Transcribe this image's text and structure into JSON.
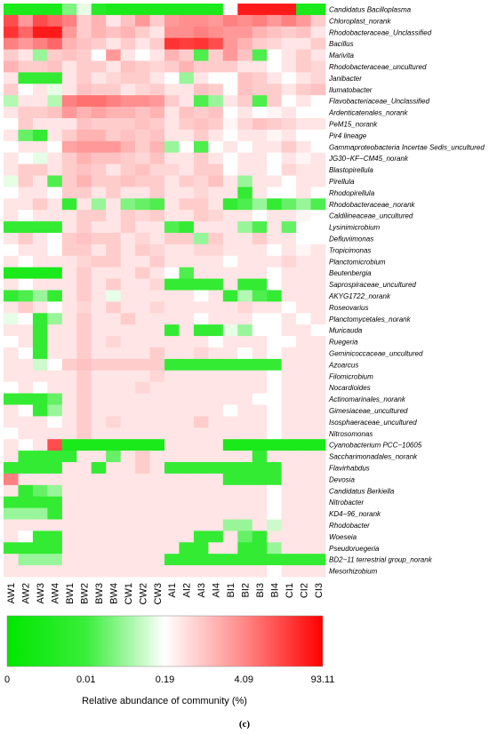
{
  "chart_data": {
    "type": "heatmap",
    "rows": [
      "Candidatus Bacilloplasma",
      "Chloroplast_norank",
      "Rhodobacteraceae_Unclassified",
      "Bacillus",
      "Marivita",
      "Rhodobacteraceae_uncultured",
      "Janibacter",
      "Ilumatobacter",
      "Flavobacteriaceae_Unclassified",
      "Ardenticatenales_norank",
      "PeM15_norank",
      "Pir4 lineage",
      "Gammaproteobacteria Incertae Sedis_uncultured",
      "JG30−KF−CM45_norank",
      "Blastopirellula",
      "Pirellula",
      "Rhodopirellula",
      "Rhodobacteraceae_norank",
      "Caldilineaceae_uncultured",
      "Lysinimicrobium",
      "Defluviimonas",
      "Tropicimonas",
      "Planctomicrobium",
      "Beutenbergia",
      "Saprospiraceae_uncultured",
      "AKYG1722_norank",
      "Roseovarius",
      "Planctomycetales_norank",
      "Muricauda",
      "Ruegeria",
      "Geminicoccaceae_uncultured",
      "Azoarcus",
      "Filomicrobium",
      "Nocardioides",
      "Actinomarinales_norank",
      "Gimesiaceae_uncultured",
      "Isosphaeraceae_uncultured",
      "Nitrosomonas",
      "Cyanobacterium PCC−10605",
      "Saccharimonadales_norank",
      "Flavirhabdus",
      "Devosia",
      "Candidatus Berkiella",
      "Nitrobacter",
      "KD4−96_norank",
      "Rhodobacter",
      "Woeseia",
      "Pseudoruegeria",
      "BD2−11 terrestrial group_norank",
      "Mesorhizobium"
    ],
    "columns": [
      "AW1",
      "AW2",
      "AW3",
      "AW4",
      "BW1",
      "BW2",
      "BW3",
      "BW4",
      "CW1",
      "CW2",
      "CW3",
      "AI1",
      "AI2",
      "AI3",
      "AI4",
      "BI1",
      "BI2",
      "BI3",
      "BI4",
      "CI1",
      "CI2",
      "CI3"
    ],
    "values": [
      [
        0.05,
        0.05,
        0.05,
        0.05,
        0.25,
        0.45,
        0.08,
        0.05,
        0.05,
        0.05,
        0.05,
        0.05,
        0.05,
        0.05,
        0.05,
        0.5,
        0.95,
        0.95,
        0.95,
        0.95,
        0.05,
        0.05
      ],
      [
        0.85,
        0.7,
        0.85,
        0.8,
        0.75,
        0.6,
        0.65,
        0.55,
        0.62,
        0.7,
        0.6,
        0.7,
        0.72,
        0.72,
        0.7,
        0.75,
        0.72,
        0.75,
        0.7,
        0.75,
        0.7,
        0.6
      ],
      [
        0.9,
        0.8,
        0.95,
        0.95,
        0.7,
        0.6,
        0.65,
        0.62,
        0.65,
        0.6,
        0.55,
        0.72,
        0.72,
        0.75,
        0.72,
        0.7,
        0.7,
        0.65,
        0.62,
        0.6,
        0.62,
        0.55
      ],
      [
        0.75,
        0.7,
        0.75,
        0.8,
        0.65,
        0.62,
        0.6,
        0.55,
        0.6,
        0.55,
        0.6,
        0.9,
        0.88,
        0.9,
        0.85,
        0.7,
        0.65,
        0.6,
        0.58,
        0.55,
        0.55,
        0.6
      ],
      [
        0.6,
        0.55,
        0.3,
        0.6,
        0.62,
        0.6,
        0.5,
        0.7,
        0.55,
        0.5,
        0.55,
        0.65,
        0.6,
        0.15,
        0.6,
        0.7,
        0.62,
        0.15,
        0.5,
        0.55,
        0.6,
        0.55
      ],
      [
        0.65,
        0.6,
        0.6,
        0.62,
        0.55,
        0.6,
        0.6,
        0.55,
        0.62,
        0.6,
        0.58,
        0.6,
        0.65,
        0.6,
        0.6,
        0.6,
        0.55,
        0.55,
        0.5,
        0.55,
        0.6,
        0.58
      ],
      [
        0.55,
        0.1,
        0.1,
        0.1,
        0.55,
        0.6,
        0.55,
        0.58,
        0.6,
        0.6,
        0.55,
        0.5,
        0.3,
        0.55,
        0.5,
        0.5,
        0.62,
        0.6,
        0.55,
        0.5,
        0.55,
        0.58
      ],
      [
        0.6,
        0.5,
        0.55,
        0.45,
        0.55,
        0.62,
        0.6,
        0.6,
        0.55,
        0.58,
        0.6,
        0.55,
        0.55,
        0.62,
        0.6,
        0.5,
        0.62,
        0.6,
        0.6,
        0.55,
        0.6,
        0.62
      ],
      [
        0.35,
        0.55,
        0.55,
        0.35,
        0.75,
        0.78,
        0.78,
        0.75,
        0.72,
        0.72,
        0.7,
        0.6,
        0.55,
        0.15,
        0.3,
        0.55,
        0.6,
        0.15,
        0.6,
        0.5,
        0.55,
        0.5
      ],
      [
        0.55,
        0.6,
        0.6,
        0.62,
        0.7,
        0.65,
        0.68,
        0.65,
        0.65,
        0.62,
        0.65,
        0.55,
        0.62,
        0.6,
        0.62,
        0.5,
        0.55,
        0.5,
        0.52,
        0.55,
        0.5,
        0.5
      ],
      [
        0.5,
        0.6,
        0.55,
        0.55,
        0.55,
        0.62,
        0.6,
        0.6,
        0.6,
        0.62,
        0.6,
        0.55,
        0.6,
        0.62,
        0.6,
        0.52,
        0.58,
        0.62,
        0.6,
        0.58,
        0.55,
        0.55
      ],
      [
        0.55,
        0.2,
        0.1,
        0.55,
        0.6,
        0.65,
        0.65,
        0.6,
        0.62,
        0.6,
        0.62,
        0.55,
        0.55,
        0.6,
        0.55,
        0.5,
        0.55,
        0.55,
        0.52,
        0.55,
        0.5,
        0.5
      ],
      [
        0.5,
        0.55,
        0.55,
        0.5,
        0.68,
        0.7,
        0.7,
        0.7,
        0.65,
        0.6,
        0.65,
        0.3,
        0.5,
        0.15,
        0.5,
        0.55,
        0.5,
        0.55,
        0.55,
        0.6,
        0.55,
        0.5
      ],
      [
        0.55,
        0.5,
        0.45,
        0.55,
        0.6,
        0.65,
        0.62,
        0.62,
        0.6,
        0.58,
        0.62,
        0.55,
        0.55,
        0.6,
        0.55,
        0.5,
        0.55,
        0.55,
        0.5,
        0.55,
        0.52,
        0.55
      ],
      [
        0.55,
        0.6,
        0.6,
        0.55,
        0.6,
        0.62,
        0.6,
        0.55,
        0.6,
        0.62,
        0.58,
        0.58,
        0.55,
        0.6,
        0.6,
        0.5,
        0.55,
        0.55,
        0.5,
        0.58,
        0.55,
        0.55
      ],
      [
        0.45,
        0.6,
        0.55,
        0.15,
        0.6,
        0.65,
        0.6,
        0.6,
        0.62,
        0.6,
        0.6,
        0.55,
        0.6,
        0.58,
        0.62,
        0.55,
        0.3,
        0.55,
        0.55,
        0.5,
        0.55,
        0.55
      ],
      [
        0.5,
        0.55,
        0.55,
        0.5,
        0.6,
        0.6,
        0.55,
        0.6,
        0.55,
        0.55,
        0.6,
        0.55,
        0.55,
        0.58,
        0.55,
        0.55,
        0.1,
        0.55,
        0.5,
        0.5,
        0.55,
        0.5
      ],
      [
        0.55,
        0.55,
        0.6,
        0.55,
        0.1,
        0.55,
        0.3,
        0.55,
        0.25,
        0.2,
        0.15,
        0.55,
        0.6,
        0.6,
        0.55,
        0.1,
        0.15,
        0.3,
        0.1,
        0.2,
        0.3,
        0.15
      ],
      [
        0.55,
        0.5,
        0.55,
        0.55,
        0.55,
        0.6,
        0.6,
        0.55,
        0.6,
        0.58,
        0.6,
        0.55,
        0.55,
        0.6,
        0.58,
        0.55,
        0.55,
        0.5,
        0.55,
        0.55,
        0.52,
        0.5
      ],
      [
        0.1,
        0.1,
        0.1,
        0.1,
        0.55,
        0.6,
        0.55,
        0.55,
        0.6,
        0.55,
        0.55,
        0.15,
        0.1,
        0.55,
        0.55,
        0.55,
        0.3,
        0.15,
        0.55,
        0.2,
        0.5,
        0.5
      ],
      [
        0.55,
        0.6,
        0.55,
        0.5,
        0.6,
        0.62,
        0.6,
        0.6,
        0.55,
        0.58,
        0.55,
        0.6,
        0.6,
        0.3,
        0.6,
        0.55,
        0.55,
        0.6,
        0.55,
        0.55,
        0.5,
        0.5
      ],
      [
        0.5,
        0.55,
        0.55,
        0.5,
        0.6,
        0.6,
        0.55,
        0.6,
        0.55,
        0.6,
        0.58,
        0.55,
        0.55,
        0.58,
        0.58,
        0.55,
        0.55,
        0.55,
        0.5,
        0.55,
        0.52,
        0.55
      ],
      [
        0.55,
        0.5,
        0.55,
        0.55,
        0.55,
        0.58,
        0.6,
        0.6,
        0.55,
        0.55,
        0.6,
        0.55,
        0.55,
        0.55,
        0.55,
        0.5,
        0.55,
        0.55,
        0.55,
        0.58,
        0.55,
        0.55
      ],
      [
        0.05,
        0.05,
        0.05,
        0.05,
        0.55,
        0.6,
        0.55,
        0.55,
        0.55,
        0.6,
        0.55,
        0.5,
        0.15,
        0.55,
        0.55,
        0.55,
        0.55,
        0.55,
        0.5,
        0.55,
        0.55,
        0.55
      ],
      [
        0.55,
        0.5,
        0.55,
        0.55,
        0.55,
        0.6,
        0.55,
        0.6,
        0.55,
        0.55,
        0.58,
        0.1,
        0.1,
        0.1,
        0.1,
        0.55,
        0.1,
        0.1,
        0.5,
        0.55,
        0.55,
        0.55
      ],
      [
        0.1,
        0.15,
        0.3,
        0.1,
        0.55,
        0.6,
        0.55,
        0.45,
        0.55,
        0.55,
        0.55,
        0.55,
        0.55,
        0.5,
        0.55,
        0.1,
        0.35,
        0.15,
        0.1,
        0.55,
        0.55,
        0.55
      ],
      [
        0.55,
        0.6,
        0.55,
        0.5,
        0.55,
        0.58,
        0.55,
        0.6,
        0.55,
        0.55,
        0.58,
        0.55,
        0.55,
        0.55,
        0.55,
        0.55,
        0.58,
        0.55,
        0.55,
        0.5,
        0.55,
        0.55
      ],
      [
        0.45,
        0.5,
        0.1,
        0.3,
        0.55,
        0.6,
        0.55,
        0.55,
        0.6,
        0.55,
        0.55,
        0.55,
        0.55,
        0.5,
        0.55,
        0.55,
        0.55,
        0.5,
        0.5,
        0.55,
        0.5,
        0.55
      ],
      [
        0.55,
        0.55,
        0.1,
        0.55,
        0.55,
        0.6,
        0.55,
        0.55,
        0.55,
        0.55,
        0.55,
        0.1,
        0.55,
        0.1,
        0.1,
        0.45,
        0.3,
        0.5,
        0.5,
        0.55,
        0.55,
        0.5
      ],
      [
        0.5,
        0.55,
        0.1,
        0.55,
        0.55,
        0.6,
        0.55,
        0.58,
        0.55,
        0.55,
        0.55,
        0.55,
        0.55,
        0.55,
        0.5,
        0.55,
        0.55,
        0.55,
        0.5,
        0.5,
        0.55,
        0.55
      ],
      [
        0.55,
        0.5,
        0.1,
        0.55,
        0.55,
        0.6,
        0.55,
        0.55,
        0.55,
        0.55,
        0.6,
        0.55,
        0.55,
        0.58,
        0.55,
        0.55,
        0.5,
        0.55,
        0.5,
        0.55,
        0.55,
        0.55
      ],
      [
        0.55,
        0.55,
        0.4,
        0.5,
        0.6,
        0.62,
        0.6,
        0.6,
        0.6,
        0.6,
        0.6,
        0.1,
        0.1,
        0.1,
        0.1,
        0.1,
        0.1,
        0.1,
        0.1,
        0.55,
        0.55,
        0.55
      ],
      [
        0.55,
        0.55,
        0.55,
        0.55,
        0.55,
        0.6,
        0.55,
        0.55,
        0.55,
        0.55,
        0.58,
        0.55,
        0.55,
        0.55,
        0.55,
        0.55,
        0.55,
        0.55,
        0.5,
        0.55,
        0.55,
        0.55
      ],
      [
        0.5,
        0.55,
        0.5,
        0.55,
        0.55,
        0.6,
        0.55,
        0.55,
        0.55,
        0.58,
        0.55,
        0.55,
        0.55,
        0.55,
        0.55,
        0.55,
        0.55,
        0.55,
        0.5,
        0.55,
        0.55,
        0.55
      ],
      [
        0.1,
        0.1,
        0.1,
        0.2,
        0.55,
        0.6,
        0.55,
        0.55,
        0.55,
        0.55,
        0.55,
        0.55,
        0.55,
        0.55,
        0.55,
        0.55,
        0.55,
        0.5,
        0.5,
        0.55,
        0.55,
        0.55
      ],
      [
        0.55,
        0.5,
        0.1,
        0.3,
        0.55,
        0.6,
        0.55,
        0.55,
        0.55,
        0.55,
        0.55,
        0.55,
        0.55,
        0.55,
        0.55,
        0.5,
        0.55,
        0.55,
        0.5,
        0.55,
        0.55,
        0.55
      ],
      [
        0.55,
        0.55,
        0.55,
        0.5,
        0.55,
        0.6,
        0.55,
        0.58,
        0.55,
        0.55,
        0.55,
        0.55,
        0.55,
        0.6,
        0.55,
        0.55,
        0.55,
        0.55,
        0.5,
        0.55,
        0.55,
        0.55
      ],
      [
        0.5,
        0.55,
        0.55,
        0.55,
        0.55,
        0.6,
        0.55,
        0.55,
        0.55,
        0.55,
        0.55,
        0.55,
        0.55,
        0.55,
        0.55,
        0.55,
        0.55,
        0.55,
        0.5,
        0.55,
        0.55,
        0.55
      ],
      [
        0.55,
        0.5,
        0.55,
        0.85,
        0.05,
        0.05,
        0.05,
        0.05,
        0.05,
        0.05,
        0.05,
        0.55,
        0.55,
        0.55,
        0.55,
        0.05,
        0.05,
        0.05,
        0.05,
        0.05,
        0.05,
        0.05
      ],
      [
        0.55,
        0.1,
        0.1,
        0.1,
        0.1,
        0.55,
        0.55,
        0.2,
        0.55,
        0.6,
        0.55,
        0.55,
        0.55,
        0.55,
        0.55,
        0.55,
        0.55,
        0.1,
        0.55,
        0.55,
        0.55,
        0.55
      ],
      [
        0.1,
        0.1,
        0.1,
        0.1,
        0.55,
        0.55,
        0.1,
        0.55,
        0.55,
        0.6,
        0.55,
        0.1,
        0.1,
        0.1,
        0.1,
        0.1,
        0.1,
        0.1,
        0.1,
        0.55,
        0.55,
        0.55
      ],
      [
        0.75,
        0.55,
        0.55,
        0.55,
        0.55,
        0.55,
        0.55,
        0.55,
        0.55,
        0.55,
        0.55,
        0.55,
        0.55,
        0.55,
        0.55,
        0.1,
        0.1,
        0.1,
        0.1,
        0.55,
        0.55,
        0.55
      ],
      [
        0.55,
        0.1,
        0.2,
        0.3,
        0.55,
        0.55,
        0.55,
        0.55,
        0.55,
        0.55,
        0.55,
        0.55,
        0.55,
        0.55,
        0.55,
        0.55,
        0.55,
        0.55,
        0.5,
        0.55,
        0.55,
        0.55
      ],
      [
        0.1,
        0.1,
        0.1,
        0.1,
        0.55,
        0.55,
        0.55,
        0.55,
        0.55,
        0.55,
        0.55,
        0.55,
        0.55,
        0.55,
        0.55,
        0.55,
        0.55,
        0.55,
        0.5,
        0.55,
        0.55,
        0.55
      ],
      [
        0.3,
        0.3,
        0.3,
        0.1,
        0.55,
        0.55,
        0.55,
        0.55,
        0.55,
        0.55,
        0.55,
        0.55,
        0.55,
        0.55,
        0.55,
        0.55,
        0.55,
        0.55,
        0.5,
        0.55,
        0.55,
        0.55
      ],
      [
        0.55,
        0.55,
        0.55,
        0.55,
        0.55,
        0.55,
        0.55,
        0.55,
        0.55,
        0.55,
        0.55,
        0.55,
        0.55,
        0.55,
        0.55,
        0.3,
        0.3,
        0.55,
        0.4,
        0.55,
        0.55,
        0.55
      ],
      [
        0.55,
        0.5,
        0.1,
        0.1,
        0.55,
        0.55,
        0.55,
        0.55,
        0.55,
        0.55,
        0.55,
        0.55,
        0.55,
        0.1,
        0.1,
        0.55,
        0.2,
        0.1,
        0.55,
        0.55,
        0.55,
        0.55
      ],
      [
        0.1,
        0.1,
        0.1,
        0.1,
        0.55,
        0.55,
        0.55,
        0.55,
        0.55,
        0.55,
        0.55,
        0.55,
        0.1,
        0.1,
        0.55,
        0.55,
        0.1,
        0.1,
        0.3,
        0.55,
        0.55,
        0.55
      ],
      [
        0.55,
        0.3,
        0.3,
        0.3,
        0.55,
        0.55,
        0.55,
        0.55,
        0.55,
        0.55,
        0.55,
        0.1,
        0.1,
        0.1,
        0.1,
        0.1,
        0.1,
        0.1,
        0.1,
        0.1,
        0.1,
        0.1
      ],
      [
        0.55,
        0.55,
        0.55,
        0.55,
        0.55,
        0.55,
        0.55,
        0.55,
        0.55,
        0.55,
        0.55,
        0.55,
        0.55,
        0.55,
        0.55,
        0.55,
        0.55,
        0.55,
        0.5,
        0.55,
        0.55,
        0.55
      ]
    ],
    "colorscale": {
      "colors": [
        "#00e600",
        "#ffffff",
        "#ff0000"
      ],
      "ticks": [
        "0",
        "0.01",
        "0.19",
        "4.09",
        "93.11"
      ],
      "label": "Relative abundance of community (%)"
    },
    "panel_label": "(c)"
  }
}
